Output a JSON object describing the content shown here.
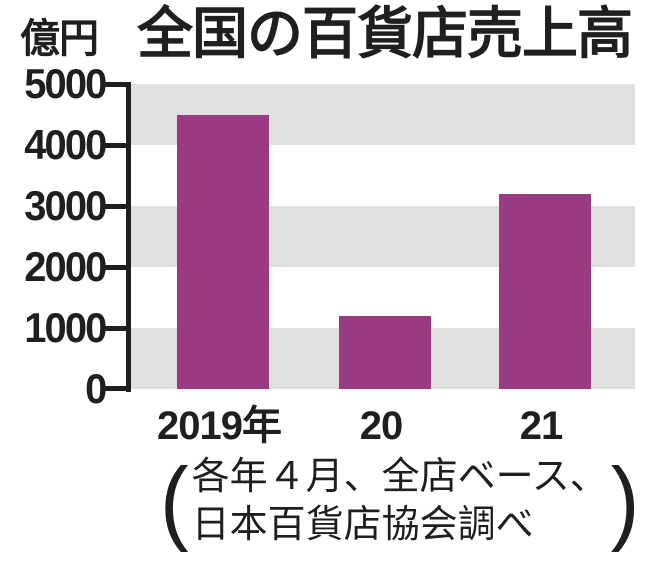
{
  "title": "全国の百貨店売上高",
  "y_axis": {
    "unit": "億円",
    "ticks": [
      "5000",
      "4000",
      "3000",
      "2000",
      "1000",
      "0"
    ]
  },
  "caption": {
    "open_paren": "(",
    "line1": "各年４月、全店ベース、",
    "line2": "日本百貨店協会調べ",
    "close_paren": ")"
  },
  "colors": {
    "bar": "#993a82",
    "band": "#e0e0e0",
    "ink": "#1f1f1f",
    "background": "#ffffff"
  },
  "chart_data": {
    "type": "bar",
    "title": "全国の百貨店売上高",
    "categories": [
      "2019年",
      "20",
      "21"
    ],
    "values": [
      4500,
      1200,
      3200
    ],
    "ylabel": "億円",
    "ylim": [
      0,
      5000
    ],
    "ytick_interval": 1000,
    "grid": "alternating horizontal bands (gray/white), no axis line on right or bottom",
    "legend": "none",
    "annotation": "各年４月、全店ベース、日本百貨店協会調べ"
  }
}
